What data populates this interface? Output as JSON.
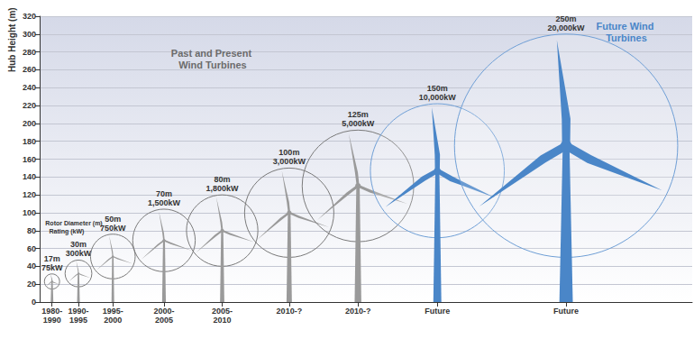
{
  "chart_data": {
    "type": "turbines",
    "y_label": "Hub Height (m)",
    "categories": [
      "1980-1990",
      "1990-1995",
      "1995-2000",
      "2000-2005",
      "2005-2010",
      "2010-?",
      "2010-?",
      "Future",
      "Future"
    ],
    "x": [
      14,
      44,
      83,
      141,
      207,
      283,
      361,
      451,
      597
    ],
    "xlim": [
      0,
      740
    ],
    "values": [
      23,
      32,
      51,
      69,
      80,
      100,
      130,
      147,
      175
    ],
    "rotor_diameter": [
      17,
      30,
      50,
      70,
      80,
      100,
      125,
      150,
      250
    ],
    "rotor_diameter_labels": [
      "17m",
      "30m",
      "50m",
      "70m",
      "80m",
      "100m",
      "125m",
      "150m",
      "250m"
    ],
    "rating": [
      75,
      300,
      750,
      1500,
      1800,
      3000,
      5000,
      10000,
      20000
    ],
    "rating_labels": [
      "75kW",
      "300kW",
      "750kW",
      "1,500kW",
      "1,800kW",
      "3,000kW",
      "5,000kW",
      "10,000kW",
      "20,000kW"
    ],
    "colors": [
      "#9a9a9a",
      "#9a9a9a",
      "#9a9a9a",
      "#9a9a9a",
      "#9a9a9a",
      "#9a9a9a",
      "#9a9a9a",
      "#4a86c8",
      "#4a86c8"
    ],
    "ylim": [
      0,
      320
    ],
    "yticks": [
      0,
      20,
      40,
      60,
      80,
      100,
      120,
      140,
      160,
      180,
      200,
      220,
      240,
      260,
      280,
      300,
      320
    ],
    "grid": true,
    "annotations": [
      {
        "text": "Past and Present Wind Turbines",
        "color": "#6b6b6b"
      },
      {
        "text": "Future Wind Turbines",
        "color": "#4a86c8"
      },
      {
        "text": "Rotor Diameter (m)",
        "color": "#333333"
      },
      {
        "text": "Rating (kW)",
        "color": "#333333"
      }
    ]
  }
}
